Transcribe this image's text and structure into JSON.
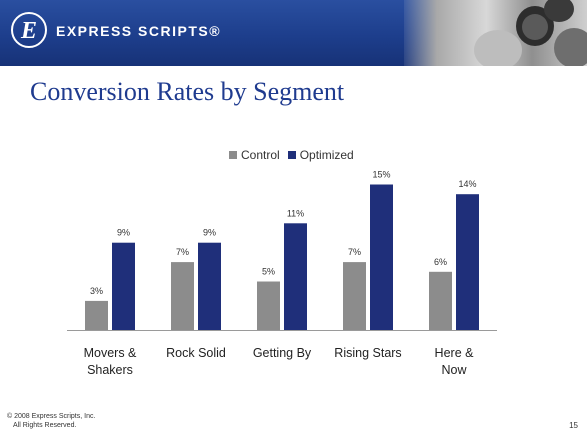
{
  "brand": {
    "name": "EXPRESS SCRIPTS®"
  },
  "slide": {
    "title": "Conversion Rates by Segment"
  },
  "legend": {
    "control": "Control",
    "optimized": "Optimized"
  },
  "colors": {
    "control": "#8c8c8c",
    "optimized": "#1f2f7a",
    "header": "#1d3e8c",
    "title": "#1f3b8f"
  },
  "icons": {
    "logo": "express-scripts-logo-icon"
  },
  "chart_data": {
    "type": "bar",
    "categories": [
      "Movers & Shakers",
      "Rock Solid",
      "Getting By",
      "Rising Stars",
      "Here & Now"
    ],
    "series": [
      {
        "name": "Control",
        "values": [
          3,
          7,
          5,
          7,
          6
        ]
      },
      {
        "name": "Optimized",
        "values": [
          9,
          9,
          11,
          15,
          14
        ]
      }
    ],
    "value_format": "percent",
    "ylim": [
      0,
      15
    ],
    "legend_position": "top",
    "grid": false
  },
  "footer": {
    "copyright_line1": "© 2008 Express Scripts, Inc.",
    "copyright_line2": "All Rights Reserved.",
    "page_number": "15"
  }
}
